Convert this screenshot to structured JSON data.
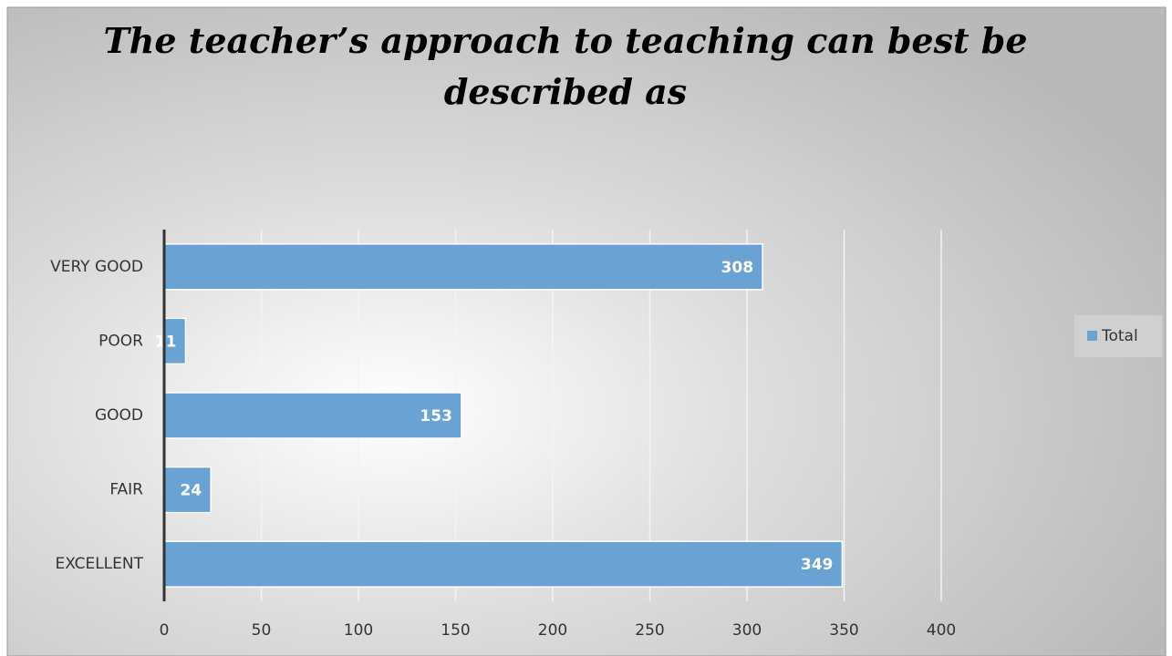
{
  "chart_data": {
    "type": "bar",
    "orientation": "horizontal",
    "title": "The teacher’s approach to teaching can best be described as",
    "categories": [
      "VERY GOOD",
      "POOR",
      "GOOD",
      "FAIR",
      "EXCELLENT"
    ],
    "series": [
      {
        "name": "Total",
        "color": "#6aa2d4",
        "values": [
          308,
          11,
          153,
          24,
          349
        ]
      }
    ],
    "xlim": [
      0,
      400
    ],
    "xticks": [
      0,
      50,
      100,
      150,
      200,
      250,
      300,
      350,
      400
    ],
    "grid": true,
    "legend": "right"
  }
}
